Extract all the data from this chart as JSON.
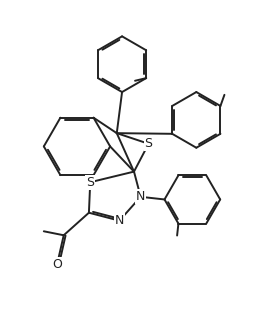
{
  "figsize": [
    2.68,
    3.22
  ],
  "dpi": 100,
  "bg_color": "#ffffff",
  "line_color": "#222222",
  "line_width": 1.4,
  "xlim": [
    0,
    10
  ],
  "ylim": [
    0,
    12
  ]
}
